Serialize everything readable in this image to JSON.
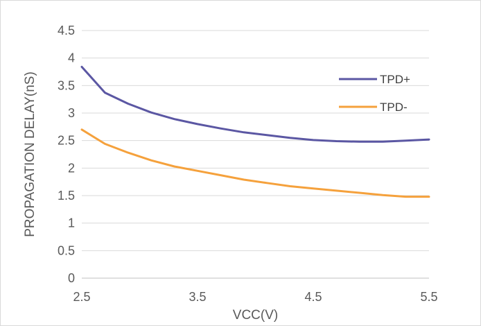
{
  "chart_data": {
    "type": "line",
    "xlabel": "VCC(V)",
    "ylabel": "PROPAGATION DELAY(nS)",
    "xlim": [
      2.5,
      5.5
    ],
    "ylim": [
      0,
      4.5
    ],
    "x_ticks": [
      "2.5",
      "3.5",
      "4.5",
      "5.5"
    ],
    "y_ticks": [
      "0",
      "0.5",
      "1",
      "1.5",
      "2",
      "2.5",
      "3",
      "3.5",
      "4",
      "4.5"
    ],
    "grid": true,
    "legend_position": "right",
    "x": [
      2.5,
      2.7,
      2.9,
      3.1,
      3.3,
      3.5,
      3.7,
      3.9,
      4.1,
      4.3,
      4.5,
      4.7,
      4.9,
      5.1,
      5.3,
      5.5
    ],
    "series": [
      {
        "name": "TPD+",
        "color": "#5b57a3",
        "values": [
          3.84,
          3.37,
          3.17,
          3.01,
          2.89,
          2.8,
          2.72,
          2.65,
          2.6,
          2.55,
          2.51,
          2.49,
          2.48,
          2.48,
          2.5,
          2.52
        ]
      },
      {
        "name": "TPD-",
        "color": "#f5a13c",
        "values": [
          2.7,
          2.44,
          2.28,
          2.14,
          2.03,
          1.95,
          1.87,
          1.79,
          1.73,
          1.67,
          1.63,
          1.59,
          1.55,
          1.51,
          1.48,
          1.48
        ]
      }
    ]
  }
}
